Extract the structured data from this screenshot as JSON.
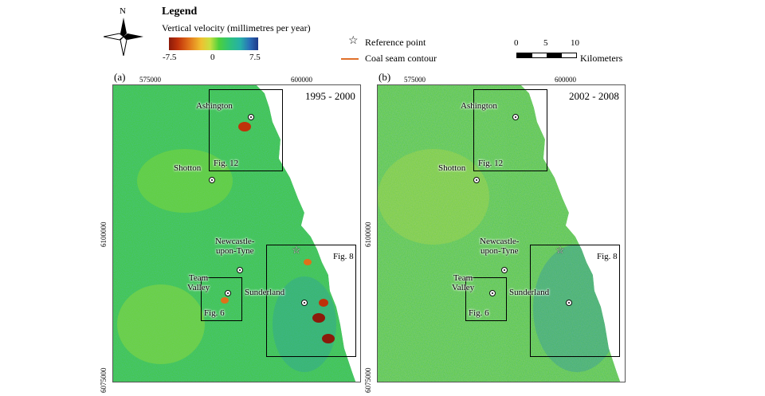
{
  "legend": {
    "title": "Legend",
    "subtitle": "Vertical velocity (millimetres per year)",
    "ticks": [
      "-7.5",
      "0",
      "7.5"
    ]
  },
  "north": {
    "label": "N",
    "icon": "north-arrow-icon"
  },
  "symbols": {
    "reference_point": "Reference point",
    "coal_seam": "Coal seam contour",
    "reference_icon": "star-icon",
    "coal_color": "#e0702a"
  },
  "scale": {
    "ticks": [
      "0",
      "5",
      "10"
    ],
    "unit": "Kilometers"
  },
  "colors": {
    "low": "#8b1a0a",
    "zero": "#4cd03c",
    "high": "#1e3a8a",
    "sea": "#ffffff"
  },
  "panels": [
    {
      "label": "(a)",
      "period": "1995 - 2000",
      "easting_labels": [
        "575000",
        "600000"
      ],
      "northing_labels": [
        "6100000",
        "6075000"
      ],
      "places": {
        "ashington": "Ashington",
        "fig12": "Fig. 12",
        "shotton": "Shotton",
        "newcastle": "Newcastle-\nupon-Tyne",
        "fig8": "Fig. 8",
        "team_valley": "Team\nValley",
        "sunderland": "Sunderland",
        "fig6": "Fig. 6"
      }
    },
    {
      "label": "(b)",
      "period": "2002 - 2008",
      "easting_labels": [
        "575000",
        "600000"
      ],
      "northing_labels": [
        "6100000",
        "6075000"
      ],
      "places": {
        "ashington": "Ashington",
        "fig12": "Fig. 12",
        "shotton": "Shotton",
        "newcastle": "Newcastle-\nupon-Tyne",
        "fig8": "Fig. 8",
        "team_valley": "Team\nValley",
        "sunderland": "Sunderland",
        "fig6": "Fig. 6"
      }
    }
  ]
}
